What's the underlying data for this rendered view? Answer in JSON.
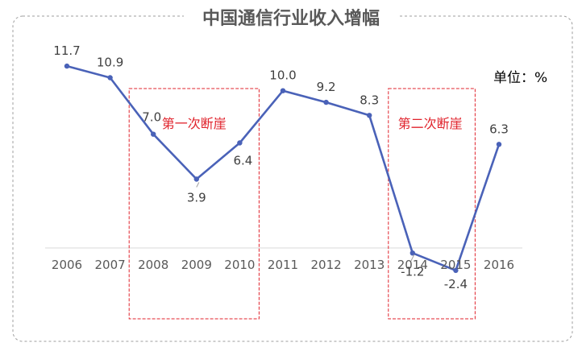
{
  "chart_data": {
    "type": "line",
    "title": "中国通信行业收入增幅",
    "unit_label": "单位：%",
    "categories": [
      "2006",
      "2007",
      "2008",
      "2009",
      "2010",
      "2011",
      "2012",
      "2013",
      "2014",
      "2015",
      "2016"
    ],
    "values": [
      11.7,
      10.9,
      7.0,
      3.9,
      6.4,
      10.0,
      9.2,
      8.3,
      -1.2,
      -2.4,
      6.3
    ],
    "value_labels": [
      "11.7",
      "10.9",
      "7.0",
      "3.9",
      "6.4",
      "10.0",
      "9.2",
      "8.3",
      "-1.2",
      "-2.4",
      "6.3"
    ],
    "line_color": "#4a62b8",
    "highlight_color": "#e0232c",
    "annotations": [
      {
        "label": "第一次断崖",
        "from_category": "2008",
        "to_category": "2010"
      },
      {
        "label": "第二次断崖",
        "from_category": "2014",
        "to_category": "2015"
      }
    ],
    "grid": false,
    "legend": "none"
  }
}
